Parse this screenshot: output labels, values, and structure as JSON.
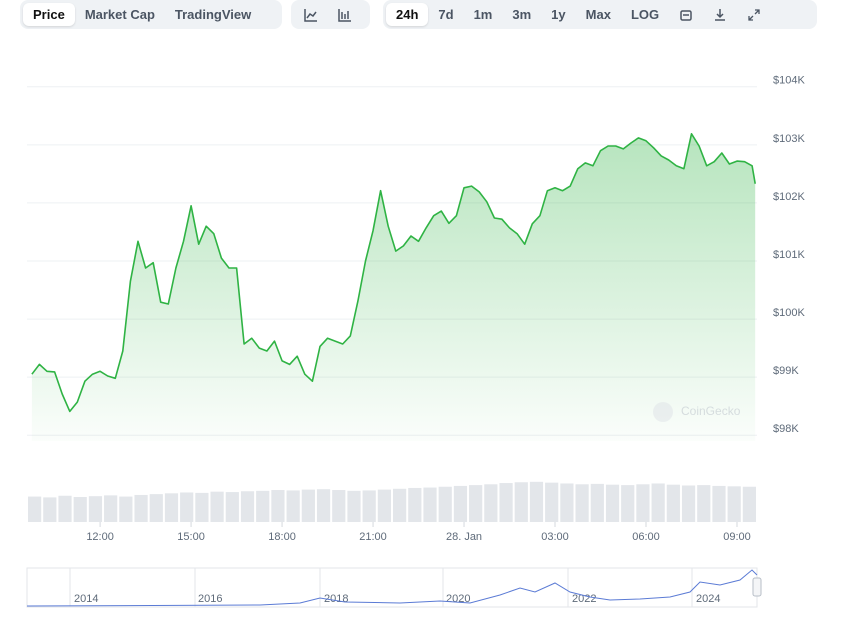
{
  "toolbar": {
    "tabs": [
      "Price",
      "Market Cap",
      "TradingView"
    ],
    "ranges": [
      "24h",
      "7d",
      "1m",
      "3m",
      "1y",
      "Max",
      "LOG"
    ]
  },
  "watermark": "CoinGecko",
  "navigator": {
    "labels": [
      "2014",
      "2016",
      "2018",
      "2020",
      "2022",
      "2024"
    ]
  },
  "chart_data": [
    {
      "type": "line",
      "color": "#2fb344",
      "grid": true,
      "x": [
        9.75,
        10,
        10.25,
        10.5,
        10.75,
        11,
        11.25,
        11.5,
        11.75,
        12,
        12.25,
        12.5,
        12.75,
        13,
        13.25,
        13.5,
        13.75,
        14,
        14.25,
        14.5,
        14.75,
        15,
        15.25,
        15.5,
        15.75,
        16,
        16.25,
        16.5,
        16.75,
        17,
        17.25,
        17.5,
        17.75,
        18,
        18.25,
        18.5,
        18.75,
        19,
        19.25,
        19.5,
        19.75,
        20,
        20.25,
        20.5,
        20.75,
        21,
        21.25,
        21.5,
        21.75,
        22,
        22.25,
        22.5,
        22.75,
        23,
        23.25,
        23.5,
        23.75,
        24,
        24.25,
        24.5,
        24.75,
        25,
        25.25,
        25.5,
        25.75,
        26,
        26.25,
        26.5,
        26.75,
        27,
        27.25,
        27.5,
        27.75,
        28,
        28.25,
        28.5,
        28.75,
        29,
        29.25,
        29.5,
        29.75,
        30,
        30.25,
        30.5,
        30.75,
        31,
        31.25,
        31.5,
        31.75,
        32,
        32.25,
        32.5,
        32.75,
        33,
        33.25,
        33.5,
        33.6
      ],
      "values": [
        99050,
        99220,
        99100,
        99090,
        98710,
        98410,
        98570,
        98930,
        99050,
        99100,
        99020,
        98980,
        99450,
        100650,
        101340,
        100880,
        100970,
        100290,
        100260,
        100880,
        101340,
        101950,
        101290,
        101600,
        101470,
        101050,
        100880,
        100880,
        99570,
        99670,
        99500,
        99450,
        99620,
        99280,
        99220,
        99360,
        99050,
        98930,
        99530,
        99670,
        99620,
        99570,
        99710,
        100310,
        101000,
        101520,
        102210,
        101600,
        101170,
        101260,
        101430,
        101340,
        101570,
        101780,
        101860,
        101650,
        101780,
        102260,
        102290,
        102190,
        102020,
        101740,
        101720,
        101570,
        101470,
        101290,
        101640,
        101780,
        102210,
        102260,
        102210,
        102290,
        102590,
        102690,
        102640,
        102900,
        102980,
        102980,
        102930,
        103030,
        103120,
        103070,
        102950,
        102810,
        102740,
        102640,
        102590,
        103190,
        102980,
        102640,
        102710,
        102860,
        102670,
        102720,
        102710,
        102640,
        102330
      ],
      "xlim": [
        9.59,
        33.66
      ],
      "xticks": [
        {
          "value": 12,
          "label": "12:00"
        },
        {
          "value": 15,
          "label": "15:00"
        },
        {
          "value": 18,
          "label": "18:00"
        },
        {
          "value": 21,
          "label": "21:00"
        },
        {
          "value": 24,
          "label": "28. Jan"
        },
        {
          "value": 27,
          "label": "03:00"
        },
        {
          "value": 30,
          "label": "06:00"
        },
        {
          "value": 33,
          "label": "09:00"
        }
      ],
      "ylim": [
        97900,
        104100
      ],
      "yticks": [
        {
          "value": 98000,
          "label": "$98K"
        },
        {
          "value": 99000,
          "label": "$99K"
        },
        {
          "value": 100000,
          "label": "$100K"
        },
        {
          "value": 101000,
          "label": "$101K"
        },
        {
          "value": 102000,
          "label": "$102K"
        },
        {
          "value": 103000,
          "label": "$103K"
        },
        {
          "value": 104000,
          "label": "$104K"
        }
      ]
    },
    {
      "type": "bar",
      "color": "#e3e6ea",
      "ylim": [
        0,
        100
      ],
      "values": [
        62,
        60,
        64,
        61,
        63,
        65,
        62,
        66,
        68,
        70,
        72,
        71,
        74,
        73,
        75,
        76,
        78,
        77,
        79,
        80,
        78,
        76,
        77,
        79,
        81,
        83,
        84,
        86,
        88,
        90,
        92,
        95,
        97,
        98,
        96,
        94,
        92,
        93,
        91,
        90,
        92,
        94,
        91,
        89,
        90,
        88,
        87,
        86
      ]
    }
  ]
}
